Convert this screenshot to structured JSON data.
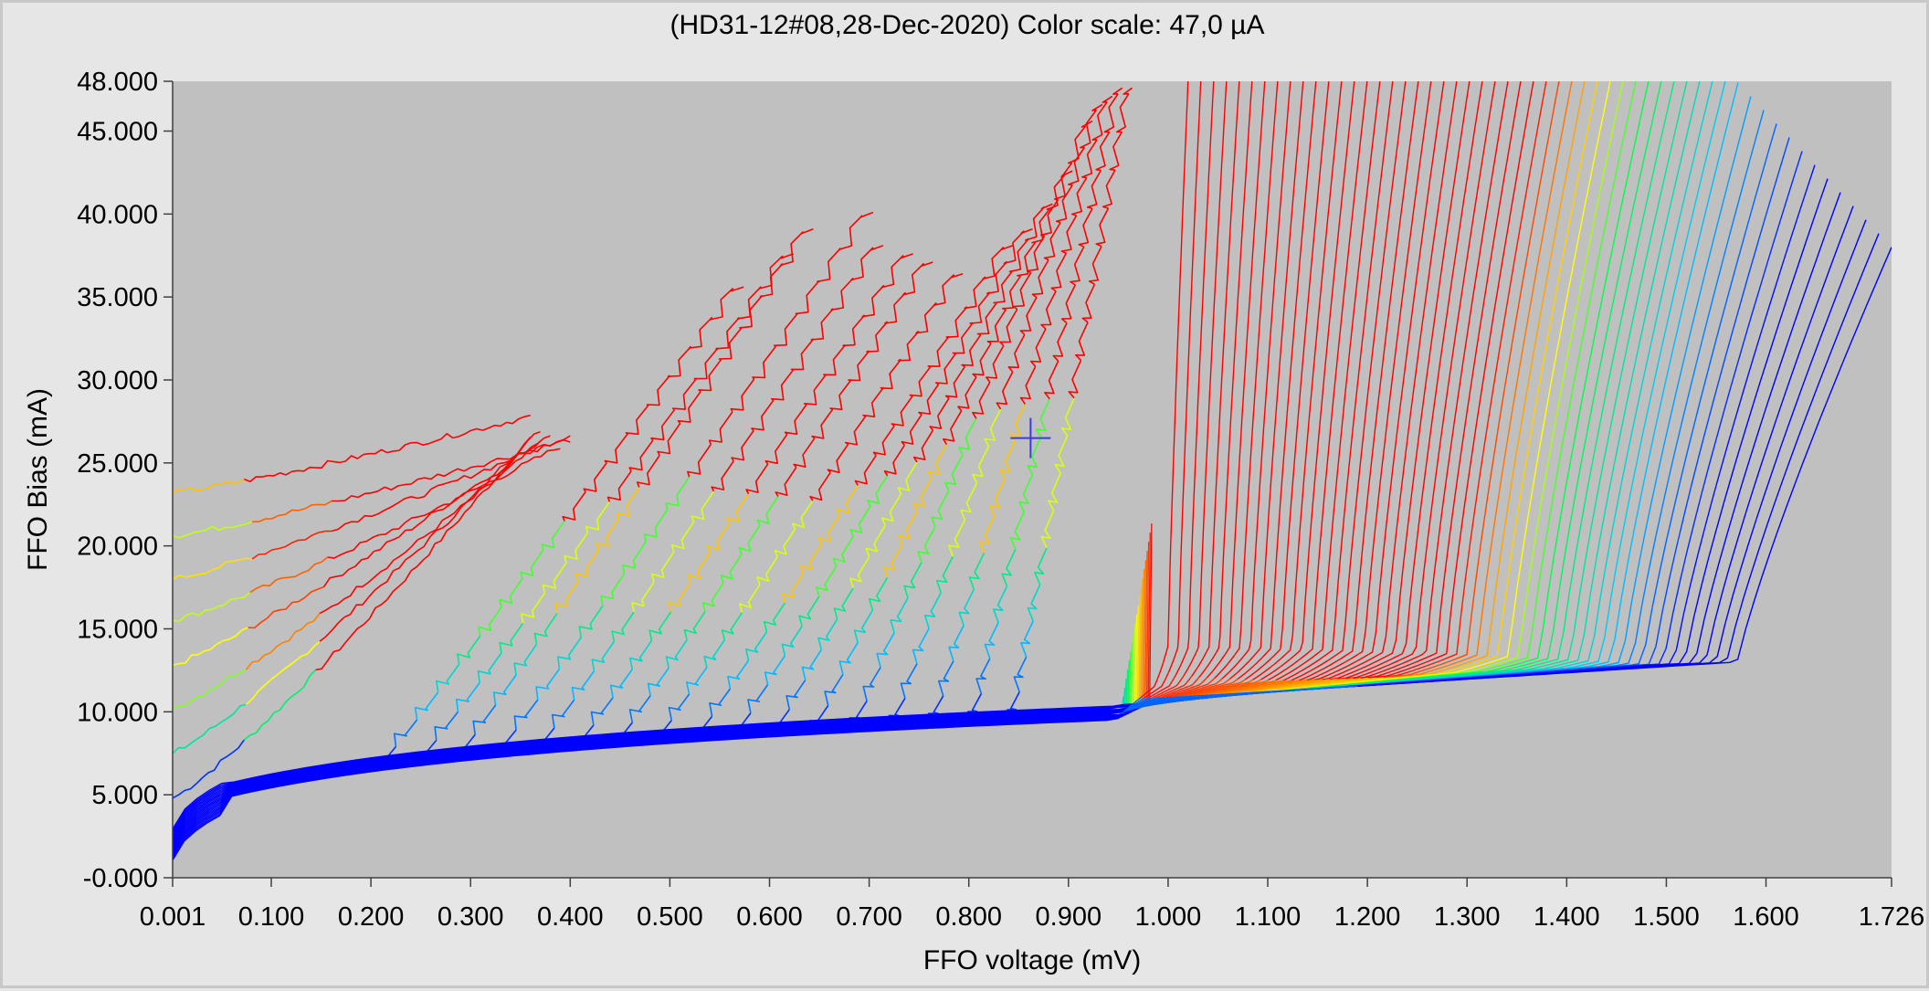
{
  "chart_data": {
    "type": "line",
    "title": "(HD31-12#08,28-Dec-2020) Color scale: 47,0 µA",
    "xlabel": "FFO voltage (mV)",
    "ylabel": "FFO Bias (mA)",
    "xlim": [
      0.001,
      1.726
    ],
    "ylim": [
      0.0,
      48.0
    ],
    "x_ticks": [
      0.001,
      0.1,
      0.2,
      0.3,
      0.4,
      0.5,
      0.6,
      0.7,
      0.8,
      0.9,
      1.0,
      1.1,
      1.2,
      1.3,
      1.4,
      1.5,
      1.6,
      1.726
    ],
    "x_tick_labels": [
      "0.001",
      "0.100",
      "0.200",
      "0.300",
      "0.400",
      "0.500",
      "0.600",
      "0.700",
      "0.800",
      "0.900",
      "1.000",
      "1.100",
      "1.200",
      "1.300",
      "1.400",
      "1.500",
      "1.600",
      "1.726"
    ],
    "y_ticks": [
      0,
      5,
      10,
      15,
      20,
      25,
      30,
      35,
      40,
      45,
      48
    ],
    "y_tick_labels": [
      "-0.000",
      "5.000",
      "10.000",
      "15.000",
      "20.000",
      "25.000",
      "30.000",
      "35.000",
      "40.000",
      "45.000",
      "48.000"
    ],
    "grid": false,
    "plot_background": "#c0c0c0",
    "color_scale": [
      "#0000ff",
      "#00c8ff",
      "#00ff40",
      "#ffff00",
      "#ff8000",
      "#ff0000"
    ],
    "cursor_marker": {
      "x": 0.862,
      "y": 26.5,
      "color": "#3a3ae8"
    },
    "series_groups": [
      {
        "name": "",
        "description": "Left flat-start curves",
        "y_starts": [
          4.8,
          7.5,
          10.2,
          12.8,
          15.5,
          18.0,
          20.6,
          23.2
        ],
        "end_x": [
          0.36,
          0.37,
          0.37,
          0.38,
          0.39,
          0.4,
          0.4,
          0.36
        ],
        "end_y": [
          26.5,
          27.0,
          26.2,
          26.8,
          26.0,
          26.7,
          26.4,
          27.8
        ]
      },
      {
        "name": "",
        "description": "Stepped middle curves",
        "start_x": [
          0.2,
          0.24,
          0.28,
          0.32,
          0.36,
          0.4,
          0.44,
          0.48,
          0.52,
          0.56,
          0.6,
          0.64,
          0.68,
          0.72,
          0.76,
          0.8,
          0.84
        ],
        "end_x": [
          0.57,
          0.62,
          0.64,
          0.7,
          0.71,
          0.74,
          0.76,
          0.79,
          0.84,
          0.86,
          0.88,
          0.9,
          0.92,
          0.93,
          0.94,
          0.95,
          0.96
        ],
        "end_y": [
          36.0,
          38.0,
          39.5,
          40.5,
          38.5,
          38.0,
          37.5,
          36.8,
          38.5,
          39.5,
          41.0,
          43.0,
          46.0,
          47.0,
          47.5,
          48.0,
          48.0
        ]
      },
      {
        "name": "",
        "description": "Right curves",
        "count": 56,
        "start_x_range": [
          0.95,
          1.1
        ],
        "end_x_range": [
          1.0,
          1.726
        ],
        "peak_y_range": [
          38.0,
          48.0
        ]
      }
    ]
  }
}
